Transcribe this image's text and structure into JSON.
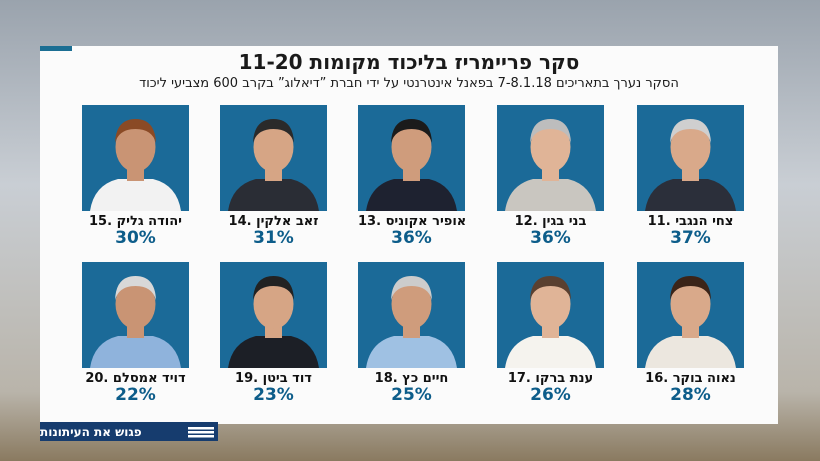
{
  "title": "סקר פריימריז בליכוד מקומות 11-20",
  "subtitle": "הסקר נערך בתאריכים 7-8.1.18 בפאנל אינטרנטי על ידי חברת ”דיאלוג” בקרב 600 מצביעי ליכוד",
  "candidates": [
    {
      "name": "11. צחי הנגבי",
      "percent": "37%"
    },
    {
      "name": "12. בני בגין",
      "percent": "36%"
    },
    {
      "name": "13. אופיר אקוניס",
      "percent": "36%"
    },
    {
      "name": "14. זאב אלקין",
      "percent": "31%"
    },
    {
      "name": "15. יהודה גליק",
      "percent": "30%"
    },
    {
      "name": "16. נאוה בוקר",
      "percent": "28%"
    },
    {
      "name": "17. ענת ברקו",
      "percent": "26%"
    },
    {
      "name": "18. חיים כץ",
      "percent": "25%"
    },
    {
      "name": "19. דוד ביטן",
      "percent": "23%"
    },
    {
      "name": "20. דויד אמסלם",
      "percent": "22%"
    }
  ],
  "footer": {
    "program": "פגוש את העיתונות"
  }
}
